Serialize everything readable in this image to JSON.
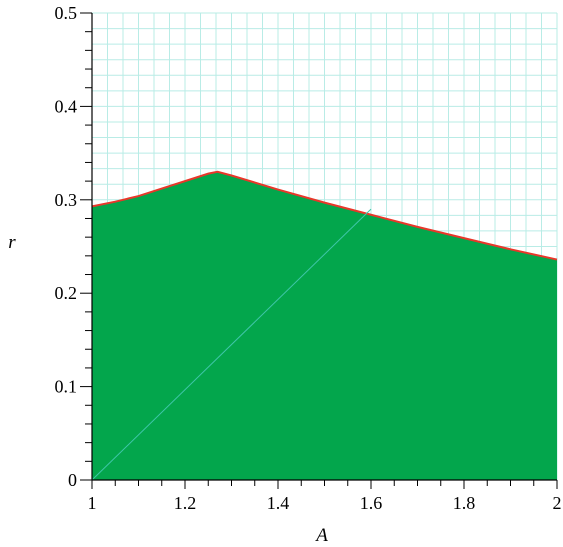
{
  "chart_data": {
    "type": "area",
    "xlabel": "A",
    "ylabel": "r",
    "xlim": [
      1,
      2
    ],
    "ylim": [
      0,
      0.5
    ],
    "x_ticks": [
      1,
      1.2,
      1.4,
      1.6,
      1.8,
      2
    ],
    "x_tick_labels": [
      "1",
      "1.2",
      "1.4",
      "1.6",
      "1.8",
      "2"
    ],
    "y_ticks": [
      0,
      0.1,
      0.2,
      0.3,
      0.4,
      0.5
    ],
    "y_tick_labels": [
      "0",
      "0.1",
      "0.2",
      "0.3",
      "0.4",
      "0.5"
    ],
    "grid": true,
    "series": [
      {
        "x": [
          1.0,
          1.05,
          1.1,
          1.15,
          1.2,
          1.25,
          1.27,
          1.3,
          1.4,
          1.5,
          1.6,
          1.7,
          1.8,
          1.9,
          2.0
        ],
        "values": [
          0.293,
          0.298,
          0.304,
          0.312,
          0.32,
          0.328,
          0.33,
          0.326,
          0.311,
          0.297,
          0.284,
          0.271,
          0.259,
          0.247,
          0.236
        ]
      }
    ],
    "colors": {
      "fill": "#03a64c",
      "boundary": "#e8372a",
      "grid": "#b9ece6",
      "diagonal": "#3fc6a8"
    }
  }
}
